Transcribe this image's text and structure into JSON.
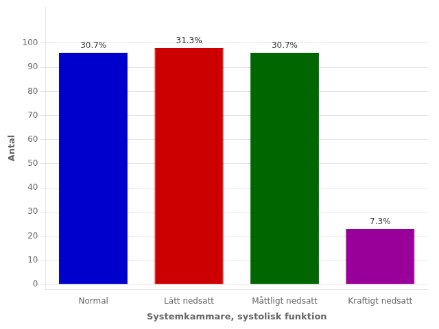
{
  "chart_data": {
    "type": "bar",
    "categories": [
      "Normal",
      "Lätt nedsatt",
      "Måttligt nedsatt",
      "Kraftigt nedsatt"
    ],
    "values": [
      96,
      98,
      96,
      23
    ],
    "colors": [
      "#0000CC",
      "#CC0000",
      "#006600",
      "#990099"
    ],
    "bar_labels": [
      "30.7%",
      "31.3%",
      "30.7%",
      "7.3%"
    ],
    "xlabel": "Systemkammare, systolisk funktion",
    "ylabel": "Antal",
    "ylim": [
      -2,
      115
    ],
    "yticks": [
      0,
      10,
      20,
      30,
      40,
      50,
      60,
      70,
      80,
      90,
      100
    ],
    "grid": true
  }
}
